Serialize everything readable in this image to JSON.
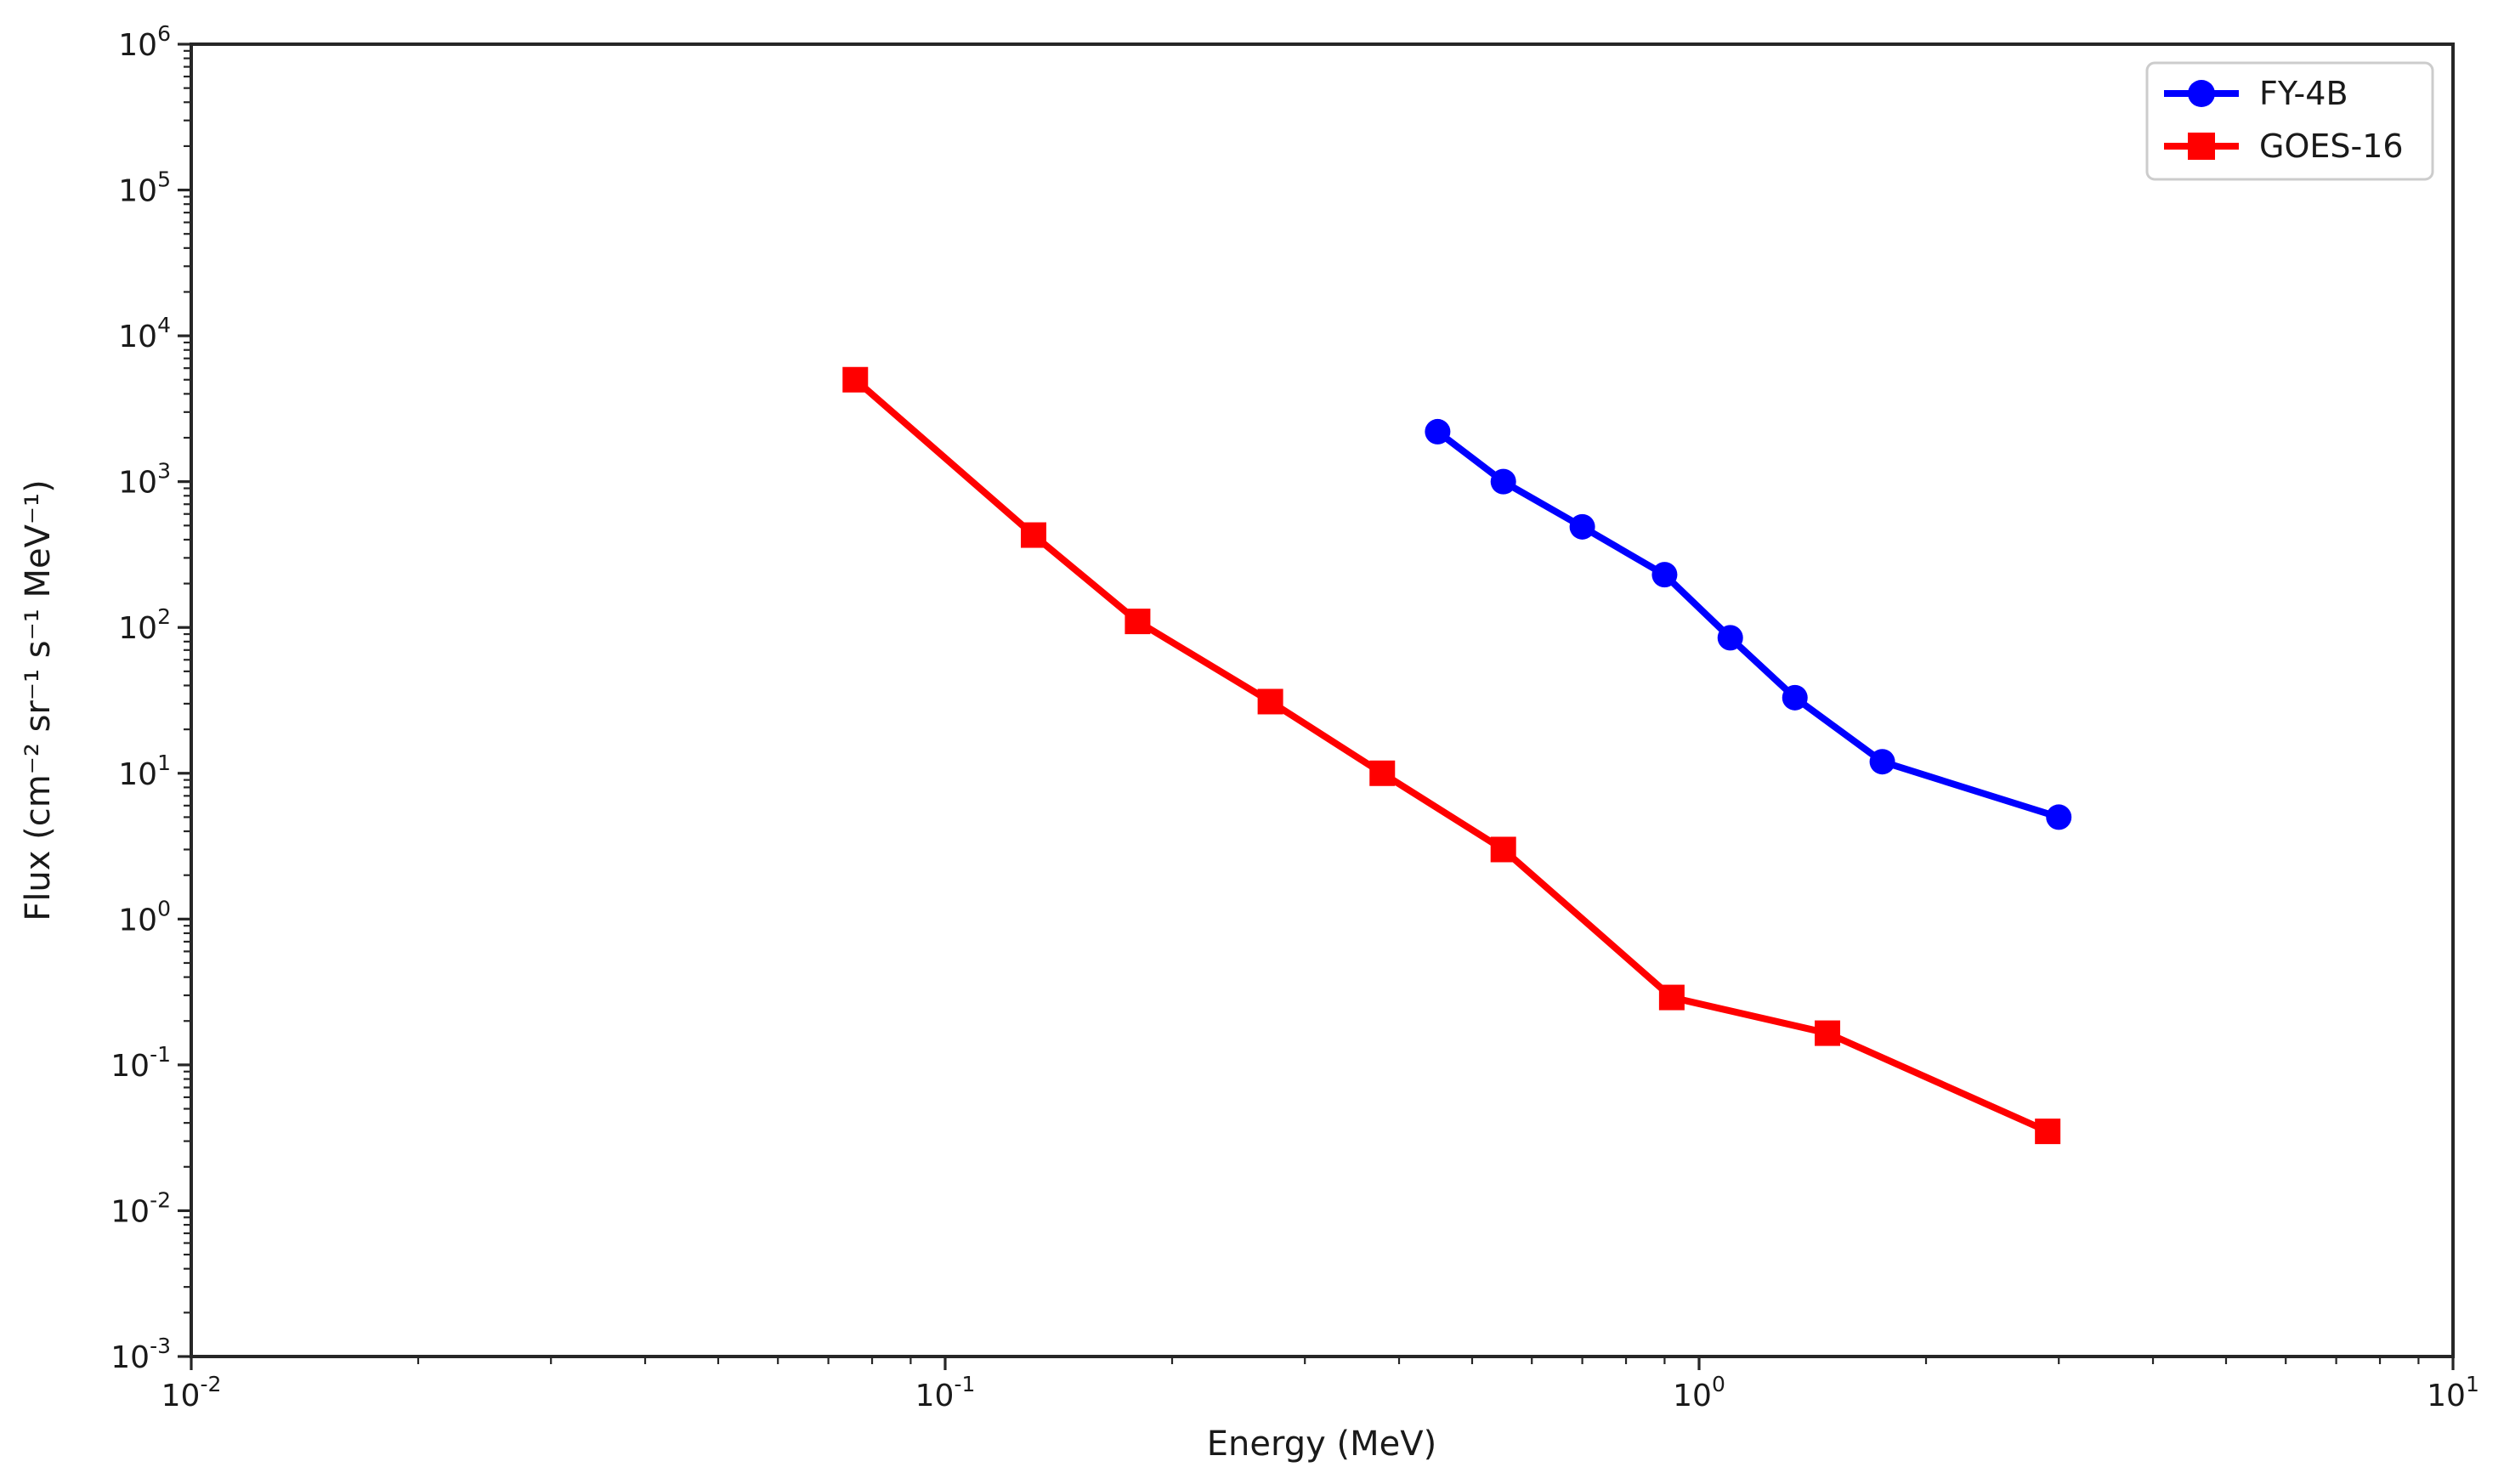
{
  "chart_data": {
    "type": "line",
    "title": "",
    "xlabel": "Energy (MeV)",
    "ylabel": "Flux (cm⁻² sr⁻¹ s⁻¹ MeV⁻¹)",
    "x_scale": "log",
    "y_scale": "log",
    "xlim": [
      0.01,
      10
    ],
    "ylim": [
      0.001,
      1000000
    ],
    "x_tick_labels": [
      "10^-2",
      "10^-1",
      "10^0",
      "10^1"
    ],
    "y_tick_labels": [
      "10^-3",
      "10^-2",
      "10^-1",
      "10^0",
      "10^1",
      "10^2",
      "10^3",
      "10^4",
      "10^5",
      "10^6"
    ],
    "grid": false,
    "legend_position": "upper right",
    "series": [
      {
        "name": "FY-4B",
        "color": "#0000ff",
        "marker": "circle",
        "x": [
          0.45,
          0.55,
          0.7,
          0.9,
          1.1,
          1.34,
          1.75,
          3.0
        ],
        "y": [
          2200,
          1000,
          490,
          230,
          85,
          33,
          12,
          5
        ]
      },
      {
        "name": "GOES-16",
        "color": "#ff0000",
        "marker": "square",
        "x": [
          0.076,
          0.131,
          0.18,
          0.27,
          0.38,
          0.55,
          0.92,
          1.48,
          2.9
        ],
        "y": [
          5000,
          430,
          110,
          31,
          10,
          3,
          0.29,
          0.165,
          0.035
        ]
      }
    ]
  },
  "styles": {
    "axis_color": "#262626",
    "text_color": "#1a1a1a",
    "legend_border_color": "#cccccc",
    "background": "#ffffff"
  }
}
